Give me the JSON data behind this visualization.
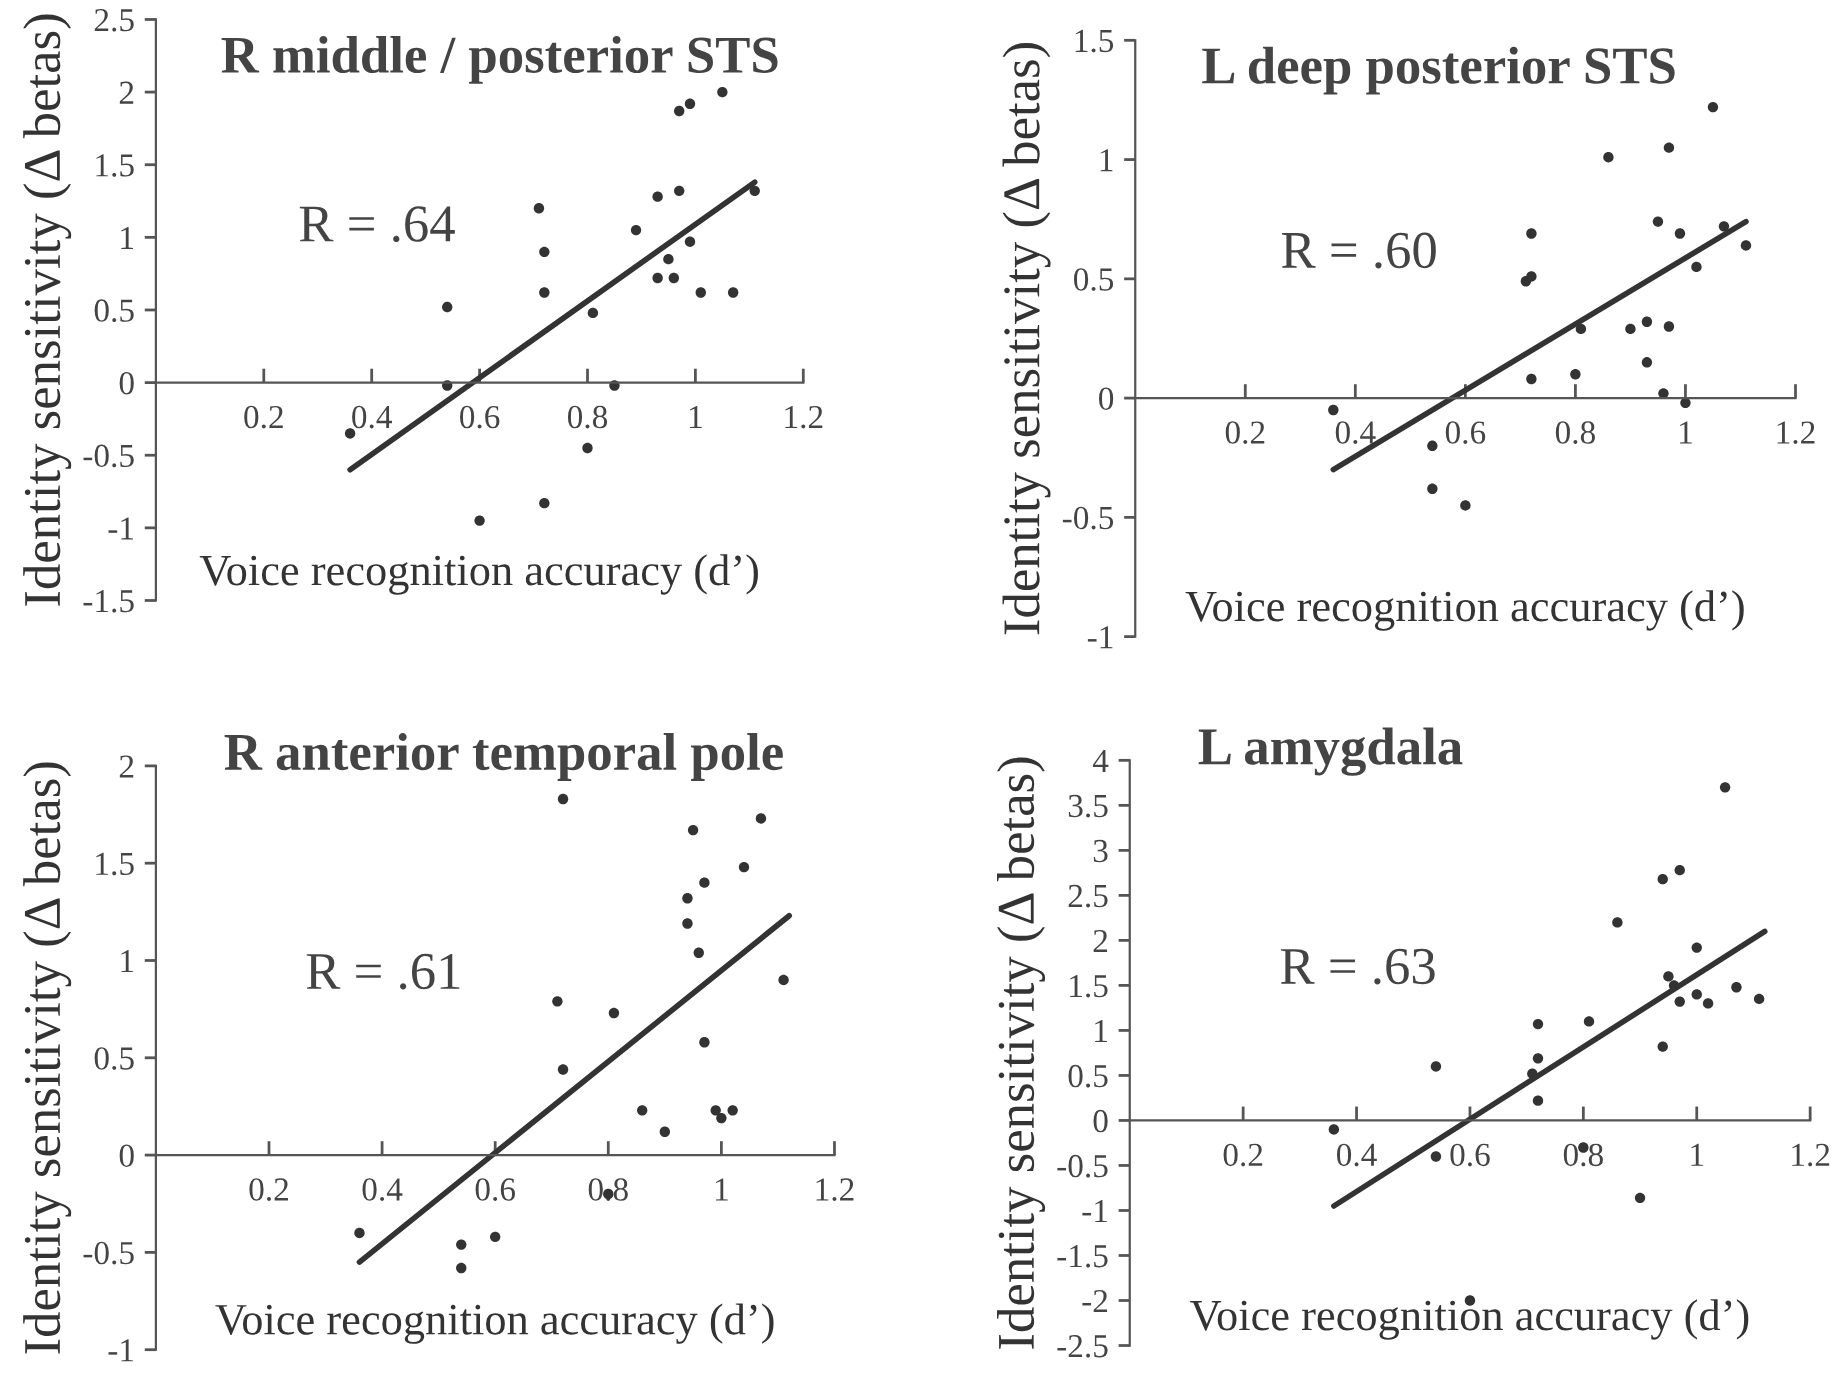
{
  "chart_data": [
    {
      "type": "scatter",
      "title": "R middle / posterior STS",
      "xlabel": "Voice recognition accuracy (d’)",
      "ylabel": "Identity sensitivity (Δ betas)",
      "annotations": [
        "R = .64"
      ],
      "xlim": [
        0,
        1.2
      ],
      "xticks": [
        0.2,
        0.4,
        0.6,
        0.8,
        1,
        1.2
      ],
      "ylim": [
        -1.5,
        2.5
      ],
      "yticks": [
        -1.5,
        -1,
        -0.5,
        0,
        0.5,
        1,
        1.5,
        2,
        2.5
      ],
      "grid": false,
      "series": [
        {
          "marker": "circle",
          "color": "#333333",
          "x": [
            0.36,
            0.54,
            0.54,
            0.6,
            0.71,
            0.72,
            0.72,
            0.72,
            0.8,
            0.81,
            0.85,
            0.89,
            0.93,
            0.93,
            0.95,
            0.96,
            0.97,
            0.97,
            0.99,
            0.99,
            1.01,
            1.05,
            1.07,
            1.11
          ],
          "values": [
            -0.35,
            0.52,
            -0.02,
            -0.95,
            1.2,
            0.9,
            0.62,
            -0.83,
            -0.45,
            0.48,
            -0.02,
            1.05,
            1.28,
            0.72,
            0.85,
            0.72,
            1.87,
            1.32,
            1.92,
            0.97,
            0.62,
            2.0,
            0.62,
            1.32
          ]
        },
        {
          "type": "line",
          "color": "#333333",
          "x": [
            0.36,
            1.11
          ],
          "values": [
            -0.6,
            1.38
          ]
        }
      ]
    },
    {
      "type": "scatter",
      "title": "L deep posterior STS",
      "xlabel": "Voice recognition accuracy (d’)",
      "ylabel": "Identity sensitivity (Δ betas)",
      "annotations": [
        "R = .60"
      ],
      "xlim": [
        0,
        1.2
      ],
      "xticks": [
        0.2,
        0.4,
        0.6,
        0.8,
        1,
        1.2
      ],
      "ylim": [
        -1,
        1.5
      ],
      "yticks": [
        -1,
        -0.5,
        0,
        0.5,
        1,
        1.5
      ],
      "grid": false,
      "series": [
        {
          "marker": "circle",
          "color": "#333333",
          "x": [
            0.36,
            0.54,
            0.54,
            0.6,
            0.71,
            0.72,
            0.72,
            0.72,
            0.8,
            0.81,
            0.86,
            0.9,
            0.93,
            0.93,
            0.95,
            0.96,
            0.97,
            0.97,
            0.99,
            1.0,
            1.02,
            1.05,
            1.07,
            1.11
          ],
          "values": [
            -0.05,
            -0.2,
            -0.38,
            -0.45,
            0.49,
            0.51,
            0.69,
            0.08,
            0.1,
            0.29,
            1.01,
            0.29,
            0.32,
            0.15,
            0.74,
            0.02,
            1.05,
            0.3,
            0.69,
            -0.02,
            0.55,
            1.22,
            0.72,
            0.64
          ]
        },
        {
          "type": "line",
          "color": "#333333",
          "x": [
            0.36,
            1.11
          ],
          "values": [
            -0.3,
            0.74
          ]
        }
      ]
    },
    {
      "type": "scatter",
      "title": "R anterior temporal pole",
      "xlabel": "Voice recognition accuracy (d’)",
      "ylabel": "Identity sensitivity (Δ betas)",
      "annotations": [
        "R = .61"
      ],
      "xlim": [
        0,
        1.2
      ],
      "xticks": [
        0.2,
        0.4,
        0.6,
        0.8,
        1,
        1.2
      ],
      "ylim": [
        -1,
        2
      ],
      "yticks": [
        -1,
        -0.5,
        0,
        0.5,
        1,
        1.5,
        2
      ],
      "grid": false,
      "series": [
        {
          "marker": "circle",
          "color": "#333333",
          "x": [
            0.36,
            0.54,
            0.54,
            0.6,
            0.71,
            0.72,
            0.72,
            0.8,
            0.81,
            0.86,
            0.9,
            0.94,
            0.94,
            0.95,
            0.96,
            0.97,
            0.97,
            0.99,
            1.0,
            1.02,
            1.04,
            1.07,
            1.11
          ],
          "values": [
            -0.4,
            -0.46,
            -0.58,
            -0.42,
            0.79,
            1.83,
            0.44,
            -0.2,
            0.73,
            0.23,
            0.12,
            1.32,
            1.19,
            1.67,
            1.04,
            1.4,
            0.58,
            0.23,
            0.19,
            0.23,
            1.48,
            1.73,
            0.9
          ]
        },
        {
          "type": "line",
          "color": "#333333",
          "x": [
            0.36,
            1.12
          ],
          "values": [
            -0.55,
            1.23
          ]
        }
      ]
    },
    {
      "type": "scatter",
      "title": "L amygdala",
      "xlabel": "Voice recognition accuracy (d’)",
      "ylabel": "Identity sensitivity (Δ betas)",
      "annotations": [
        "R = .63"
      ],
      "xlim": [
        0,
        1.2
      ],
      "xticks": [
        0.2,
        0.4,
        0.6,
        0.8,
        1,
        1.2
      ],
      "ylim": [
        -2.5,
        4
      ],
      "yticks": [
        -2.5,
        -2,
        -1.5,
        -1,
        -0.5,
        0,
        0.5,
        1,
        1.5,
        2,
        2.5,
        3,
        3.5,
        4
      ],
      "grid": false,
      "series": [
        {
          "marker": "circle",
          "color": "#333333",
          "x": [
            0.36,
            0.54,
            0.54,
            0.6,
            0.71,
            0.72,
            0.72,
            0.72,
            0.8,
            0.81,
            0.86,
            0.9,
            0.94,
            0.94,
            0.95,
            0.96,
            0.97,
            0.97,
            1.0,
            1.0,
            1.02,
            1.05,
            1.07,
            1.11
          ],
          "values": [
            -0.1,
            0.6,
            -0.4,
            -2.0,
            0.52,
            1.07,
            0.69,
            0.22,
            -0.3,
            1.1,
            2.2,
            -0.86,
            2.68,
            0.82,
            1.6,
            1.5,
            2.78,
            1.32,
            1.4,
            1.92,
            1.3,
            3.7,
            1.48,
            1.35
          ]
        },
        {
          "type": "line",
          "color": "#333333",
          "x": [
            0.36,
            1.12
          ],
          "values": [
            -0.95,
            2.1
          ]
        }
      ]
    }
  ]
}
